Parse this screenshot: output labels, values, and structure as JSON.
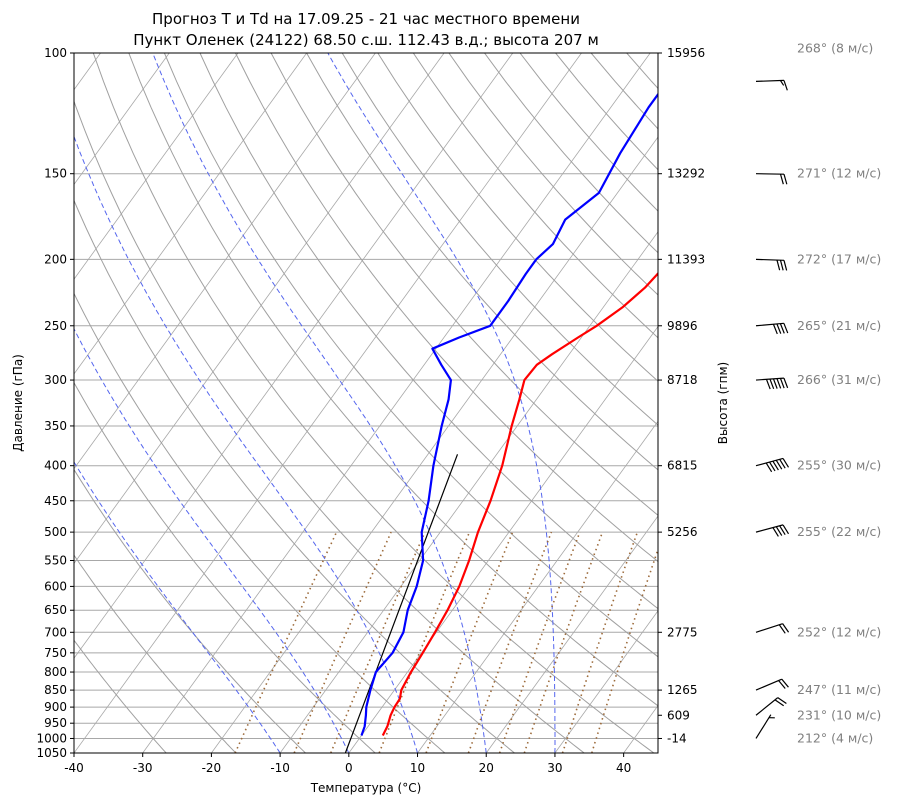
{
  "chart_data": {
    "type": "line",
    "chart_kind": "skew-T log-p",
    "title": "Прогноз T и Td на 17.09.25 - 21 час местного времени",
    "subtitle": "Пункт Оленек (24122) 68.50 с.ш. 112.43 в.д.; высота 207 м",
    "xlabel": "Температура (°C)",
    "ylabel": "Давление (гПа)",
    "y2label": "Высота (гпм)",
    "xlim": [
      -40,
      45
    ],
    "ylim": [
      1050,
      100
    ],
    "yscale": "log",
    "x_ticks": [
      "-40",
      "-30",
      "-20",
      "-10",
      "0",
      "10",
      "20",
      "30",
      "40"
    ],
    "y_ticks": [
      1050,
      1000,
      950,
      900,
      850,
      800,
      750,
      700,
      650,
      600,
      550,
      500,
      450,
      400,
      350,
      300,
      250,
      200,
      150,
      100
    ],
    "height_labels": [
      {
        "p": 100,
        "label": "15956"
      },
      {
        "p": 150,
        "label": "13292"
      },
      {
        "p": 200,
        "label": "11393"
      },
      {
        "p": 250,
        "label": "9896"
      },
      {
        "p": 300,
        "label": "8718"
      },
      {
        "p": 400,
        "label": "6815"
      },
      {
        "p": 500,
        "label": "5256"
      },
      {
        "p": 700,
        "label": "2775"
      },
      {
        "p": 850,
        "label": "1265"
      },
      {
        "p": 925,
        "label": "609"
      },
      {
        "p": 1000,
        "label": "-14"
      }
    ],
    "series": [
      {
        "name": "T",
        "color": "#ff0000",
        "points": [
          [
            990,
            3.1
          ],
          [
            960,
            2.8
          ],
          [
            925,
            2.1
          ],
          [
            900,
            1.8
          ],
          [
            875,
            1.7
          ],
          [
            850,
            1.0
          ],
          [
            800,
            0.5
          ],
          [
            750,
            0.2
          ],
          [
            700,
            -0.2
          ],
          [
            650,
            -0.7
          ],
          [
            600,
            -1.5
          ],
          [
            550,
            -2.8
          ],
          [
            500,
            -4.5
          ],
          [
            450,
            -6.0
          ],
          [
            400,
            -8.0
          ],
          [
            350,
            -10.8
          ],
          [
            320,
            -12.5
          ],
          [
            300,
            -13.8
          ],
          [
            285,
            -13.6
          ],
          [
            275,
            -12.5
          ],
          [
            260,
            -10.5
          ],
          [
            250,
            -9.0
          ],
          [
            235,
            -7.2
          ],
          [
            220,
            -6.0
          ],
          [
            200,
            -5.2
          ],
          [
            190,
            -5.3
          ],
          [
            180,
            -6.0
          ],
          [
            170,
            -6.9
          ],
          [
            160,
            -6.3
          ],
          [
            150,
            -6.6
          ],
          [
            140,
            -7.0
          ],
          [
            130,
            -7.4
          ],
          [
            120,
            -7.7
          ],
          [
            110,
            -7.8
          ],
          [
            100,
            -7.6
          ]
        ]
      },
      {
        "name": "Td",
        "color": "#0000ff",
        "points": [
          [
            990,
            0.0
          ],
          [
            960,
            -0.5
          ],
          [
            925,
            -1.5
          ],
          [
            900,
            -2.3
          ],
          [
            850,
            -3.5
          ],
          [
            800,
            -4.6
          ],
          [
            750,
            -4.2
          ],
          [
            700,
            -4.8
          ],
          [
            650,
            -6.5
          ],
          [
            600,
            -7.7
          ],
          [
            550,
            -9.5
          ],
          [
            500,
            -12.7
          ],
          [
            450,
            -15.0
          ],
          [
            400,
            -18.0
          ],
          [
            350,
            -21.0
          ],
          [
            320,
            -22.8
          ],
          [
            300,
            -24.5
          ],
          [
            285,
            -27.5
          ],
          [
            270,
            -30.5
          ],
          [
            260,
            -27.8
          ],
          [
            250,
            -24.5
          ],
          [
            230,
            -24.5
          ],
          [
            210,
            -24.8
          ],
          [
            200,
            -24.8
          ],
          [
            190,
            -24.0
          ],
          [
            175,
            -24.8
          ],
          [
            160,
            -22.7
          ],
          [
            140,
            -23.8
          ],
          [
            120,
            -24.5
          ],
          [
            100,
            -24.5
          ]
        ]
      }
    ],
    "parcel_line": {
      "color": "#000000",
      "points": [
        [
          1050,
          -0.5
        ],
        [
          385,
          -15.7
        ]
      ]
    },
    "isotherm_step": 10,
    "dry_adiabat_color": "#a0a0a0",
    "moist_adiabat_color": "#5566ee",
    "mixing_ratio_color": "#9c6a3a",
    "grid": true,
    "winds": [
      {
        "p": 110,
        "dir": 268,
        "speed": 8,
        "label": "268° (8 м/с)"
      },
      {
        "p": 150,
        "dir": 271,
        "speed": 12,
        "label": "271° (12 м/с)"
      },
      {
        "p": 200,
        "dir": 272,
        "speed": 17,
        "label": "272° (17 м/с)"
      },
      {
        "p": 250,
        "dir": 265,
        "speed": 21,
        "label": "265° (21 м/с)"
      },
      {
        "p": 300,
        "dir": 266,
        "speed": 31,
        "label": "266° (31 м/с)"
      },
      {
        "p": 400,
        "dir": 255,
        "speed": 30,
        "label": "255° (30 м/с)"
      },
      {
        "p": 500,
        "dir": 255,
        "speed": 22,
        "label": "255° (22 м/с)"
      },
      {
        "p": 700,
        "dir": 252,
        "speed": 12,
        "label": "252° (12 м/с)"
      },
      {
        "p": 850,
        "dir": 247,
        "speed": 11,
        "label": "247° (11 м/с)"
      },
      {
        "p": 925,
        "dir": 231,
        "speed": 10,
        "label": "231° (10 м/с)"
      },
      {
        "p": 1000,
        "dir": 212,
        "speed": 4,
        "label": "212° (4 м/с)"
      }
    ]
  }
}
